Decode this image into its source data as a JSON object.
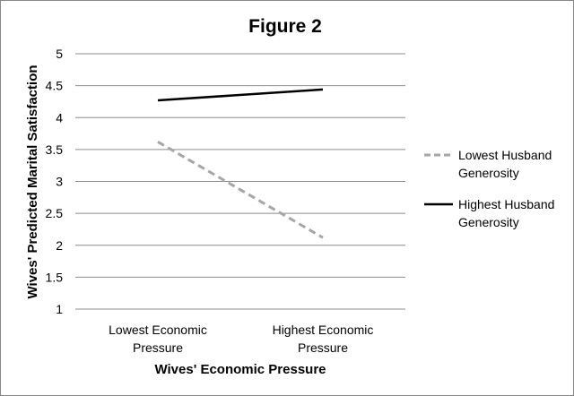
{
  "chart_data": {
    "type": "line",
    "title": "Figure 2",
    "xlabel": "Wives' Economic Pressure",
    "ylabel": "Wives' Predicted Marital Satisfaction",
    "categories": [
      [
        "Lowest Economic",
        "Pressure"
      ],
      [
        "Highest Economic",
        "Pressure"
      ]
    ],
    "ylim": [
      1,
      5
    ],
    "yticks": [
      "1",
      "1.5",
      "2",
      "2.5",
      "3",
      "3.5",
      "4",
      "4.5",
      "5"
    ],
    "grid": "horizontal",
    "legend_position": "right",
    "series": [
      {
        "name": [
          "Lowest Husband",
          "Generosity"
        ],
        "values": [
          3.62,
          2.12
        ],
        "color": "#a6a6a6",
        "style": "dashed"
      },
      {
        "name": [
          "Highest Husband",
          "Generosity"
        ],
        "values": [
          4.27,
          4.44
        ],
        "color": "#000000",
        "style": "solid"
      }
    ]
  }
}
